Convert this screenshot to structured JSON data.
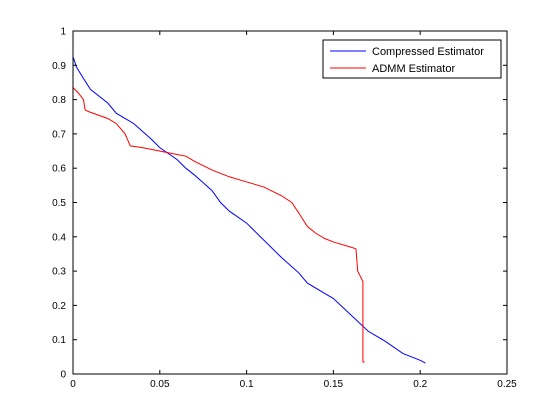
{
  "chart_data": {
    "type": "line",
    "title": "",
    "xlabel": "",
    "ylabel": "",
    "xlim": [
      0,
      0.25
    ],
    "ylim": [
      0,
      1
    ],
    "xticks": [
      0,
      0.05,
      0.1,
      0.15,
      0.2,
      0.25
    ],
    "xtick_labels": [
      "0",
      "0.05",
      "0.1",
      "0.15",
      "0.2",
      "0.25"
    ],
    "yticks": [
      0,
      0.1,
      0.2,
      0.3,
      0.4,
      0.5,
      0.6,
      0.7,
      0.8,
      0.9,
      1
    ],
    "ytick_labels": [
      "0",
      "0.1",
      "0.2",
      "0.3",
      "0.4",
      "0.5",
      "0.6",
      "0.7",
      "0.8",
      "0.9",
      "1"
    ],
    "grid": false,
    "legend_position": "top-right",
    "series": [
      {
        "name": "Compressed Estimator",
        "color": "#0000ff",
        "x": [
          0,
          0.002,
          0.005,
          0.01,
          0.02,
          0.025,
          0.035,
          0.045,
          0.05,
          0.06,
          0.065,
          0.07,
          0.08,
          0.085,
          0.09,
          0.1,
          0.12,
          0.13,
          0.135,
          0.15,
          0.17,
          0.18,
          0.19,
          0.2,
          0.203
        ],
        "values": [
          0.925,
          0.895,
          0.87,
          0.83,
          0.79,
          0.76,
          0.73,
          0.685,
          0.66,
          0.625,
          0.6,
          0.58,
          0.535,
          0.5,
          0.475,
          0.44,
          0.34,
          0.295,
          0.265,
          0.22,
          0.125,
          0.095,
          0.06,
          0.04,
          0.032
        ]
      },
      {
        "name": "ADMM Estimator",
        "color": "#ff0000",
        "x": [
          0,
          0.003,
          0.006,
          0.007,
          0.009,
          0.02,
          0.025,
          0.03,
          0.033,
          0.04,
          0.045,
          0.06,
          0.065,
          0.07,
          0.08,
          0.09,
          0.1,
          0.11,
          0.12,
          0.126,
          0.13,
          0.135,
          0.14,
          0.145,
          0.15,
          0.16,
          0.163,
          0.164,
          0.167,
          0.167,
          0.168
        ],
        "values": [
          0.835,
          0.82,
          0.8,
          0.77,
          0.765,
          0.745,
          0.73,
          0.7,
          0.665,
          0.66,
          0.655,
          0.64,
          0.635,
          0.62,
          0.595,
          0.575,
          0.56,
          0.545,
          0.52,
          0.5,
          0.47,
          0.43,
          0.41,
          0.395,
          0.385,
          0.37,
          0.365,
          0.3,
          0.27,
          0.035,
          0.035
        ]
      }
    ]
  }
}
